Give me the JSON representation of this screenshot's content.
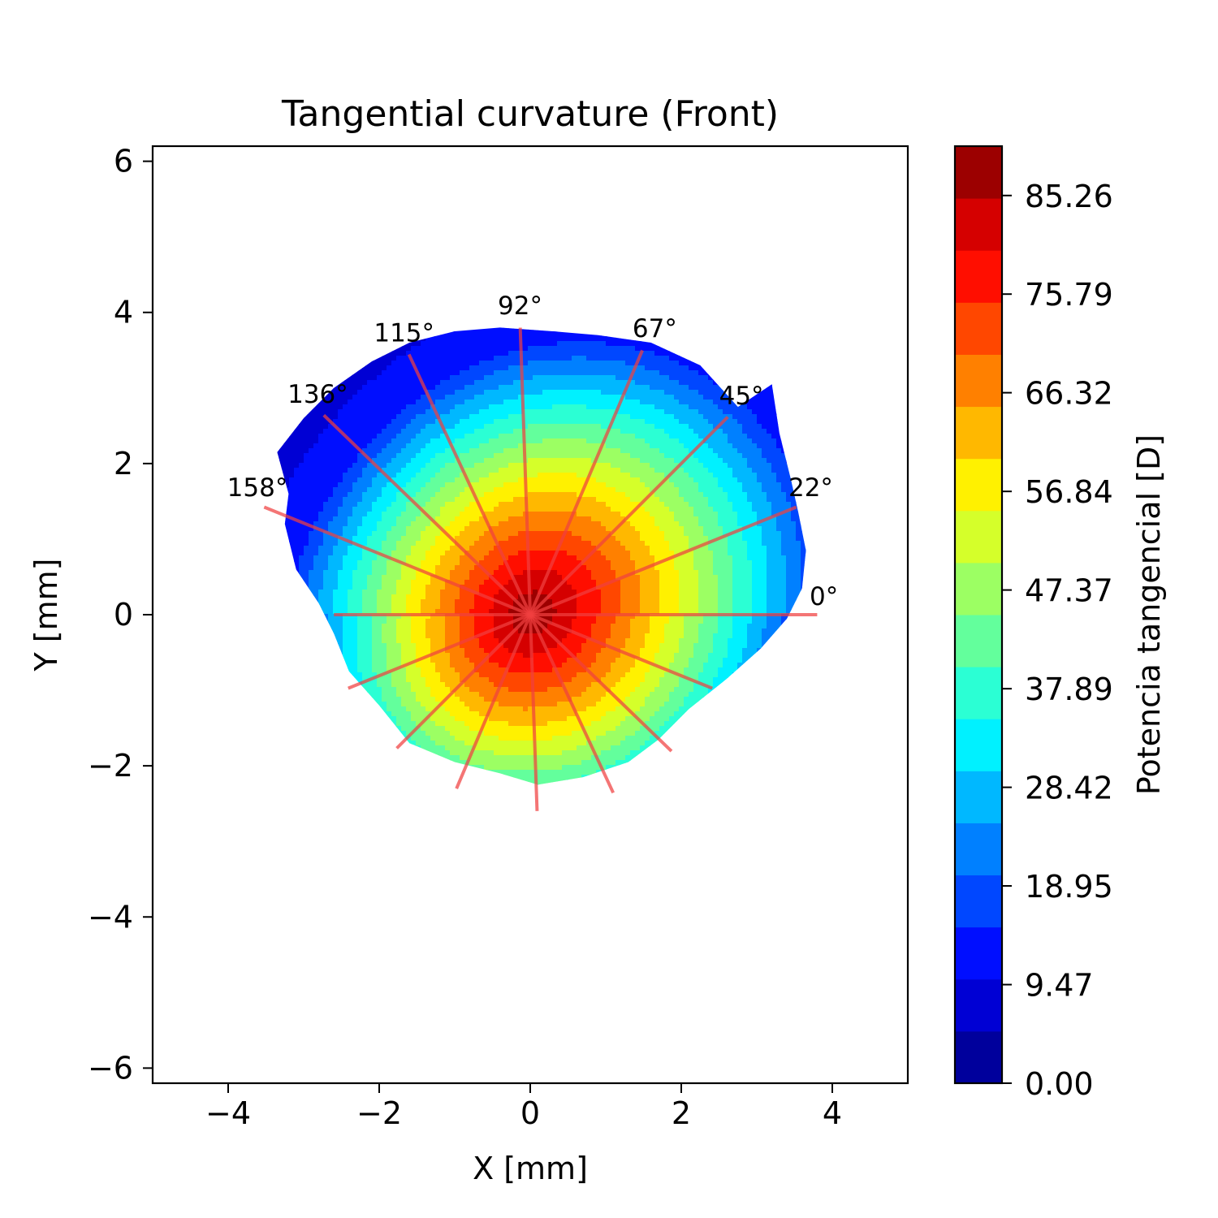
{
  "chart_data": {
    "type": "heatmap",
    "title": "Tangential curvature (Front)",
    "xlabel": "X [mm]",
    "ylabel": "Y [mm]",
    "xlim": [
      -5,
      5
    ],
    "ylim": [
      -6.2,
      6.2
    ],
    "x_ticks": [
      -4,
      -2,
      0,
      2,
      4
    ],
    "x_tick_labels": [
      "−4",
      "−2",
      "0",
      "2",
      "4"
    ],
    "y_ticks": [
      -6,
      -4,
      -2,
      0,
      2,
      4,
      6
    ],
    "y_tick_labels": [
      "−6",
      "−4",
      "−2",
      "0",
      "2",
      "4",
      "6"
    ],
    "grid": false,
    "colorbar": {
      "label": "Potencia tangencial [D]",
      "min": 0,
      "max": 90,
      "levels": 18,
      "ticks": [
        0,
        9.47,
        18.95,
        28.42,
        37.89,
        47.37,
        56.84,
        66.32,
        75.79,
        85.26
      ],
      "tick_labels": [
        "0.00",
        "9.47",
        "18.95",
        "28.42",
        "37.89",
        "47.37",
        "56.84",
        "66.32",
        "75.79",
        "85.26"
      ],
      "colormap": "jet"
    },
    "meridians": [
      {
        "angle": 0,
        "label": "0°",
        "r_plus": 3.8,
        "r_minus": 2.6
      },
      {
        "angle": 22,
        "label": "22°",
        "r_plus": 3.8,
        "r_minus": 2.6
      },
      {
        "angle": 45,
        "label": "45°",
        "r_plus": 3.7,
        "r_minus": 2.5
      },
      {
        "angle": 67,
        "label": "67°",
        "r_plus": 3.8,
        "r_minus": 2.5
      },
      {
        "angle": 92,
        "label": "92°",
        "r_plus": 3.8,
        "r_minus": 2.6
      },
      {
        "angle": 115,
        "label": "115°",
        "r_plus": 3.8,
        "r_minus": 2.6
      },
      {
        "angle": 136,
        "label": "136°",
        "r_plus": 3.8,
        "r_minus": 2.6
      },
      {
        "angle": 158,
        "label": "158°",
        "r_plus": 3.8,
        "r_minus": 2.6
      }
    ],
    "peak_value": 89,
    "peak_center": [
      0,
      0
    ],
    "meridian_color": "#f04040"
  }
}
